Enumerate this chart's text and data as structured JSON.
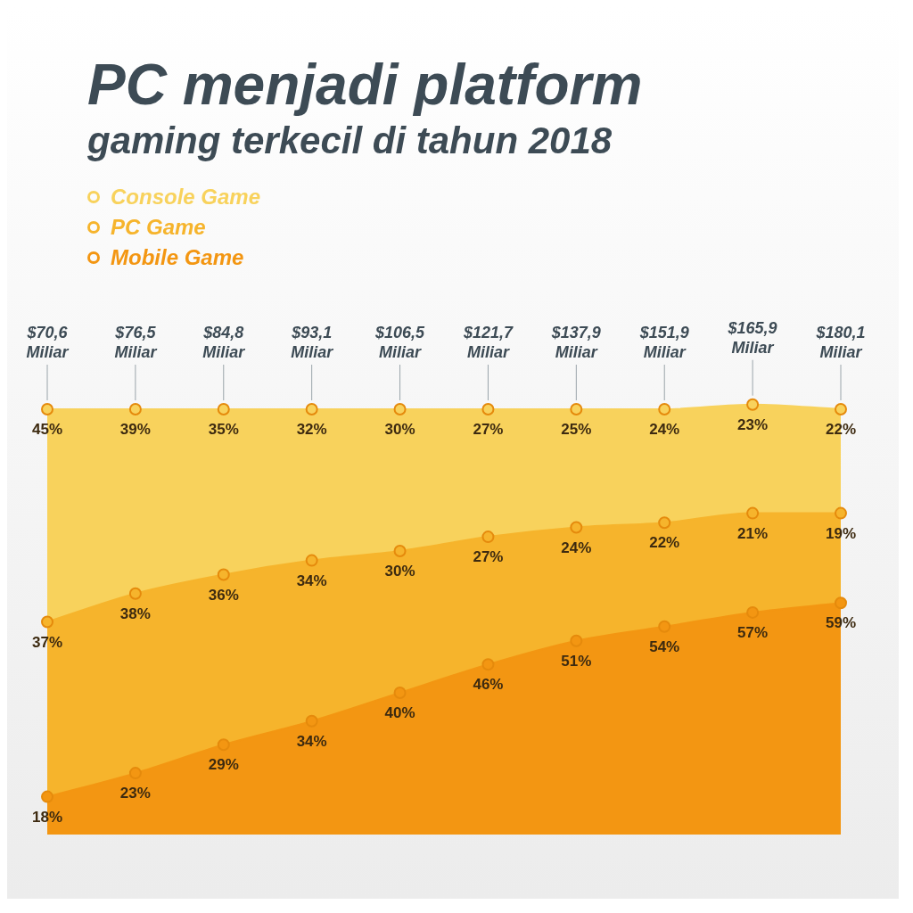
{
  "chart_data": {
    "type": "area",
    "title": "PC menjadi platform",
    "subtitle": "gaming terkecil di tahun 2018",
    "categories": [
      null,
      null,
      null,
      null,
      null,
      null,
      null,
      null,
      null,
      null
    ],
    "stacked": true,
    "marker": "circle",
    "grid": false,
    "tick_labels": false,
    "legend": "top left",
    "annotations": [
      "$70,6 Miliar",
      "$76,5 Miliar",
      "$84,8 Miliar",
      "$93,1 Miliar",
      "$106,5 Miliar",
      "$121,7 Miliar",
      "$137,9 Miliar",
      "$151,9 Miliar",
      "$165,9 Miliar",
      "$180,1 Miliar"
    ],
    "series": [
      {
        "name": "Mobile Game",
        "color": "#f39612",
        "values": [
          18,
          23,
          29,
          34,
          40,
          46,
          51,
          54,
          57,
          59
        ],
        "value_labels": [
          "18%",
          "23%",
          "29%",
          "34%",
          "40%",
          "46%",
          "51%",
          "54%",
          "57%",
          "59%"
        ]
      },
      {
        "name": "PC Game",
        "color": "#f6b42c",
        "values": [
          37,
          38,
          36,
          34,
          30,
          27,
          24,
          22,
          21,
          19
        ],
        "value_labels": [
          "37%",
          "38%",
          "36%",
          "34%",
          "30%",
          "27%",
          "24%",
          "22%",
          "21%",
          "19%"
        ]
      },
      {
        "name": "Console Game",
        "color": "#f8d25c",
        "values": [
          45,
          39,
          35,
          32,
          30,
          27,
          25,
          24,
          23,
          22
        ],
        "value_labels": [
          "45%",
          "39%",
          "35%",
          "32%",
          "30%",
          "27%",
          "25%",
          "24%",
          "23%",
          "22%"
        ]
      }
    ]
  }
}
